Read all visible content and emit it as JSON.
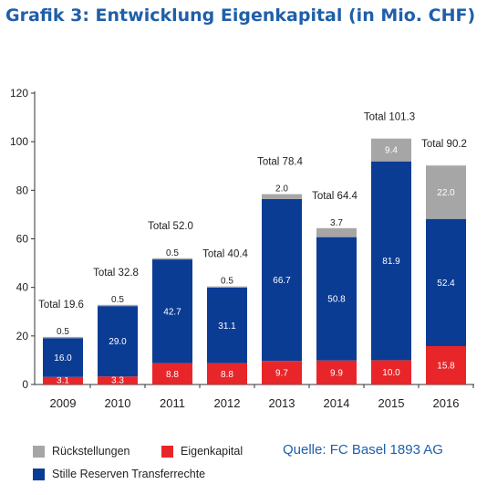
{
  "title": "Grafik 3: Entwicklung Eigenkapital (in Mio. CHF)",
  "source": "Quelle: FC Basel 1893 AG",
  "colors": {
    "eigenkapital": "#e8262a",
    "stille": "#0b3c94",
    "rueck": "#a6a6a6",
    "title": "#1f5fa9"
  },
  "chart_data": {
    "type": "bar",
    "stacked": true,
    "categories": [
      "2009",
      "2010",
      "2011",
      "2012",
      "2013",
      "2014",
      "2015",
      "2016"
    ],
    "series": [
      {
        "name": "Eigenkapital",
        "values": [
          3.1,
          3.3,
          8.8,
          8.8,
          9.7,
          9.9,
          10.0,
          15.8
        ]
      },
      {
        "name": "Stille Reserven Transferrechte",
        "values": [
          16.0,
          29.0,
          42.7,
          31.1,
          66.7,
          50.8,
          81.9,
          52.4
        ]
      },
      {
        "name": "Rückstellungen",
        "values": [
          0.5,
          0.5,
          0.5,
          0.5,
          2.0,
          3.7,
          9.4,
          22.0
        ]
      }
    ],
    "value_labels": {
      "Eigenkapital": [
        "3.1",
        "3.3",
        "8.8",
        "8.8",
        "9.7",
        "9.9",
        "10.0",
        "15.8"
      ],
      "Stille Reserven Transferrechte": [
        "16.0",
        "29.0",
        "42.7",
        "31.1",
        "66.7",
        "50.8",
        "81.9",
        "52.4"
      ],
      "Rückstellungen": [
        "0.5",
        "0.5",
        "0.5",
        "0.5",
        "2.0",
        "3.7",
        "9.4",
        "22.0"
      ]
    },
    "totals": [
      "Total 19.6",
      "Total 32.8",
      "Total 52.0",
      "Total 40.4",
      "Total 78.4",
      "Total 64.4",
      "Total 101.3",
      "Total 90.2"
    ],
    "ylim": [
      0,
      120
    ],
    "yticks": [
      0,
      20,
      40,
      60,
      80,
      100,
      120
    ],
    "ytick_labels": [
      "0",
      "20",
      "40",
      "60",
      "80",
      "100",
      "120"
    ],
    "grid": false,
    "legend_position": "bottom"
  },
  "legend": {
    "rueck": "Rückstellungen",
    "eigenkapital": "Eigenkapital",
    "stille": "Stille Reserven Transferrechte"
  }
}
